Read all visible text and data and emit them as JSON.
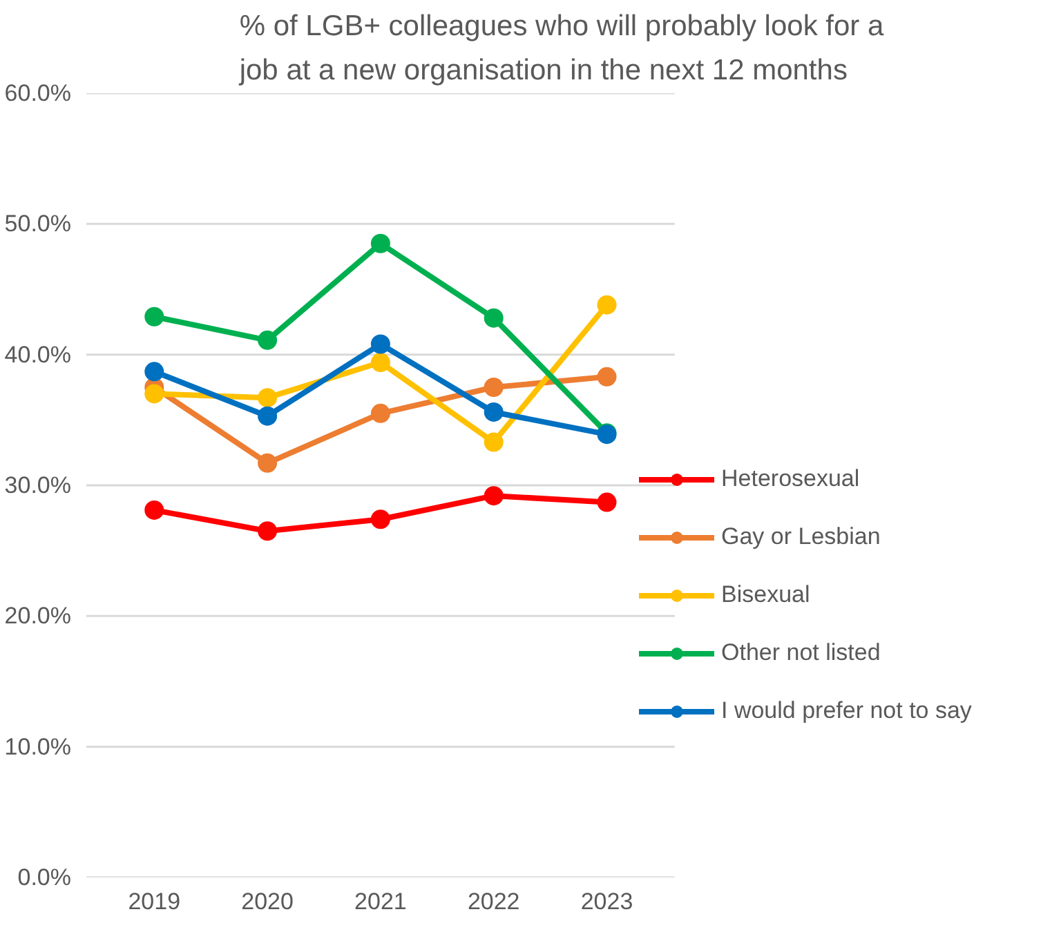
{
  "chart_data": {
    "type": "line",
    "title": "% of LGB+ colleagues who will probably look for a\njob at a new organisation in the next 12 months",
    "categories": [
      "2019",
      "2020",
      "2021",
      "2022",
      "2023"
    ],
    "series": [
      {
        "name": "Heterosexual",
        "color": "#ff0000",
        "values": [
          28.1,
          26.5,
          27.4,
          29.2,
          28.7
        ]
      },
      {
        "name": "Gay or Lesbian",
        "color": "#ed7d31",
        "values": [
          37.5,
          31.7,
          35.5,
          37.5,
          38.3
        ]
      },
      {
        "name": "Bisexual",
        "color": "#ffc000",
        "values": [
          37.0,
          36.7,
          39.4,
          33.3,
          43.8
        ]
      },
      {
        "name": "Other not listed",
        "color": "#00b050",
        "values": [
          42.9,
          41.1,
          48.5,
          42.8,
          34.0
        ]
      },
      {
        "name": "I would prefer not to say",
        "color": "#0070c0",
        "values": [
          38.7,
          35.3,
          40.8,
          35.6,
          33.9
        ]
      }
    ],
    "ylim": [
      0,
      60
    ],
    "yticks": [
      {
        "value": 0,
        "label": "0.0%"
      },
      {
        "value": 10,
        "label": "10.0%"
      },
      {
        "value": 20,
        "label": "20.0%"
      },
      {
        "value": 30,
        "label": "30.0%"
      },
      {
        "value": 40,
        "label": "40.0%"
      },
      {
        "value": 50,
        "label": "50.0%"
      },
      {
        "value": 60,
        "label": "60.0%"
      }
    ],
    "grid": "y",
    "legend": "right",
    "marker": "circle",
    "line_style": "solid"
  }
}
